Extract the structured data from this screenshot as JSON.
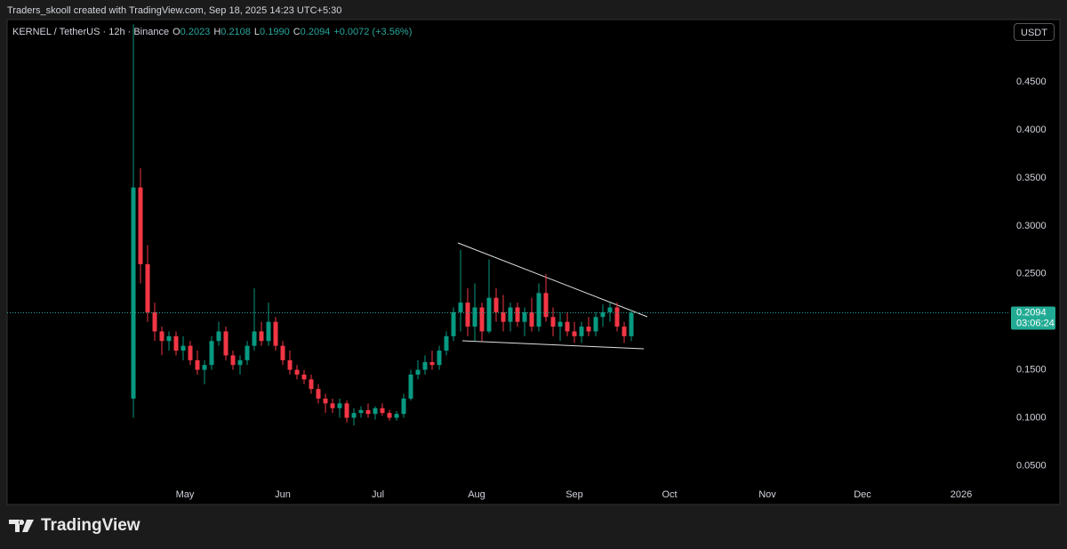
{
  "header": {
    "attribution": "Traders_skooll created with TradingView.com, Sep 18, 2025 14:23 UTC+5:30"
  },
  "chart_data": {
    "type": "candlestick",
    "title": "KERNEL / TetherUS · 12h · Binance",
    "ohlc_legend": [
      {
        "label": "O",
        "text": "0.2023"
      },
      {
        "label": "H",
        "text": "0.2108"
      },
      {
        "label": "L",
        "text": "0.1990"
      },
      {
        "label": "C",
        "text": "0.2094"
      }
    ],
    "change": "+0.0072 (+3.56%)",
    "currency": "USDT",
    "up_color": "#089981",
    "down_color": "#f23645",
    "ylim": [
      0.03,
      0.515
    ],
    "yticks": [
      {
        "value": 0.05,
        "label": "0.0500"
      },
      {
        "value": 0.1,
        "label": "0.1000"
      },
      {
        "value": 0.15,
        "label": "0.1500"
      },
      {
        "value": 0.25,
        "label": "0.2500"
      },
      {
        "value": 0.3,
        "label": "0.3000"
      },
      {
        "value": 0.35,
        "label": "0.3500"
      },
      {
        "value": 0.4,
        "label": "0.4000"
      },
      {
        "value": 0.45,
        "label": "0.4500"
      }
    ],
    "xticks": [
      "May",
      "Jun",
      "Jul",
      "Aug",
      "Sep",
      "Oct",
      "Nov",
      "Dec",
      "2026"
    ],
    "last_price": {
      "value": 0.2094,
      "label": "0.2094"
    },
    "countdown": "03:06:24",
    "ohlc": [
      [
        0.12,
        0.51,
        0.1,
        0.34
      ],
      [
        0.34,
        0.36,
        0.24,
        0.26
      ],
      [
        0.26,
        0.28,
        0.2,
        0.21
      ],
      [
        0.21,
        0.22,
        0.18,
        0.19
      ],
      [
        0.19,
        0.195,
        0.165,
        0.18
      ],
      [
        0.18,
        0.19,
        0.17,
        0.185
      ],
      [
        0.185,
        0.19,
        0.165,
        0.17
      ],
      [
        0.17,
        0.185,
        0.16,
        0.175
      ],
      [
        0.175,
        0.18,
        0.155,
        0.16
      ],
      [
        0.16,
        0.17,
        0.145,
        0.15
      ],
      [
        0.15,
        0.16,
        0.135,
        0.155
      ],
      [
        0.155,
        0.185,
        0.15,
        0.18
      ],
      [
        0.18,
        0.2,
        0.175,
        0.19
      ],
      [
        0.19,
        0.195,
        0.16,
        0.165
      ],
      [
        0.165,
        0.17,
        0.15,
        0.155
      ],
      [
        0.155,
        0.165,
        0.145,
        0.16
      ],
      [
        0.16,
        0.18,
        0.155,
        0.175
      ],
      [
        0.175,
        0.235,
        0.17,
        0.19
      ],
      [
        0.19,
        0.2,
        0.175,
        0.18
      ],
      [
        0.18,
        0.22,
        0.175,
        0.2
      ],
      [
        0.2,
        0.205,
        0.17,
        0.175
      ],
      [
        0.175,
        0.18,
        0.155,
        0.16
      ],
      [
        0.16,
        0.17,
        0.145,
        0.15
      ],
      [
        0.15,
        0.155,
        0.14,
        0.145
      ],
      [
        0.145,
        0.15,
        0.135,
        0.14
      ],
      [
        0.14,
        0.145,
        0.125,
        0.13
      ],
      [
        0.13,
        0.135,
        0.115,
        0.12
      ],
      [
        0.12,
        0.125,
        0.105,
        0.115
      ],
      [
        0.115,
        0.12,
        0.105,
        0.11
      ],
      [
        0.11,
        0.12,
        0.1,
        0.115
      ],
      [
        0.115,
        0.118,
        0.095,
        0.1
      ],
      [
        0.1,
        0.11,
        0.092,
        0.105
      ],
      [
        0.105,
        0.112,
        0.1,
        0.108
      ],
      [
        0.108,
        0.115,
        0.1,
        0.104
      ],
      [
        0.104,
        0.112,
        0.098,
        0.11
      ],
      [
        0.11,
        0.115,
        0.102,
        0.105
      ],
      [
        0.105,
        0.108,
        0.097,
        0.1
      ],
      [
        0.1,
        0.107,
        0.097,
        0.104
      ],
      [
        0.104,
        0.125,
        0.1,
        0.12
      ],
      [
        0.12,
        0.15,
        0.118,
        0.145
      ],
      [
        0.145,
        0.16,
        0.14,
        0.15
      ],
      [
        0.15,
        0.165,
        0.145,
        0.158
      ],
      [
        0.158,
        0.17,
        0.15,
        0.155
      ],
      [
        0.155,
        0.175,
        0.15,
        0.17
      ],
      [
        0.17,
        0.19,
        0.165,
        0.185
      ],
      [
        0.185,
        0.215,
        0.18,
        0.21
      ],
      [
        0.21,
        0.275,
        0.19,
        0.22
      ],
      [
        0.22,
        0.235,
        0.185,
        0.195
      ],
      [
        0.195,
        0.24,
        0.18,
        0.215
      ],
      [
        0.215,
        0.22,
        0.18,
        0.19
      ],
      [
        0.19,
        0.265,
        0.188,
        0.225
      ],
      [
        0.225,
        0.235,
        0.2,
        0.21
      ],
      [
        0.21,
        0.228,
        0.19,
        0.2
      ],
      [
        0.2,
        0.22,
        0.19,
        0.215
      ],
      [
        0.215,
        0.22,
        0.195,
        0.2
      ],
      [
        0.2,
        0.215,
        0.185,
        0.21
      ],
      [
        0.21,
        0.225,
        0.19,
        0.195
      ],
      [
        0.195,
        0.24,
        0.19,
        0.23
      ],
      [
        0.23,
        0.25,
        0.2,
        0.205
      ],
      [
        0.205,
        0.215,
        0.185,
        0.195
      ],
      [
        0.195,
        0.21,
        0.18,
        0.2
      ],
      [
        0.2,
        0.21,
        0.185,
        0.19
      ],
      [
        0.19,
        0.2,
        0.178,
        0.185
      ],
      [
        0.185,
        0.2,
        0.178,
        0.195
      ],
      [
        0.195,
        0.205,
        0.185,
        0.19
      ],
      [
        0.19,
        0.21,
        0.185,
        0.205
      ],
      [
        0.205,
        0.218,
        0.195,
        0.21
      ],
      [
        0.21,
        0.22,
        0.2,
        0.215
      ],
      [
        0.215,
        0.22,
        0.19,
        0.195
      ],
      [
        0.195,
        0.2,
        0.178,
        0.185
      ],
      [
        0.185,
        0.212,
        0.18,
        0.2094
      ]
    ]
  },
  "footer": {
    "brand": "TradingView"
  }
}
